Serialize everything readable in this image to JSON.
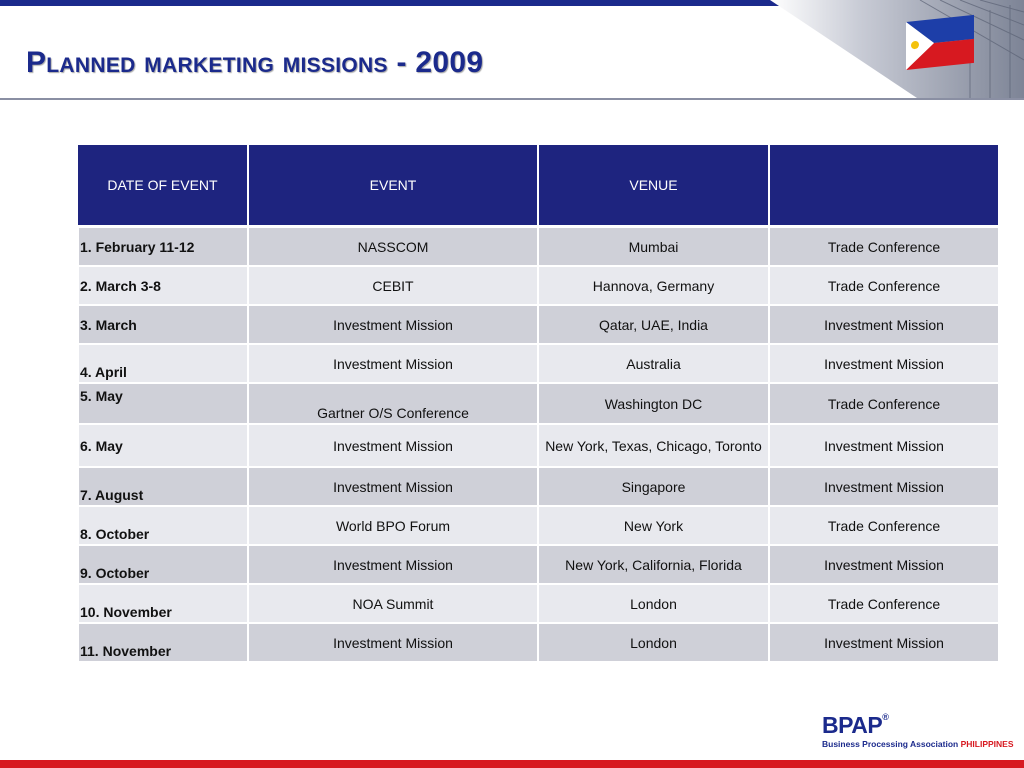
{
  "title": "Planned marketing missions - 2009",
  "colors": {
    "accent_blue": "#1b2a8c",
    "header_fill": "#1e247f",
    "accent_red": "#d71920",
    "row_dark": "#cfd0d8",
    "row_light": "#e8e9ee"
  },
  "table": {
    "headers": [
      "DATE OF EVENT",
      "EVENT",
      "VENUE",
      ""
    ],
    "rows": [
      [
        "1. February 11-12",
        "NASSCOM",
        "Mumbai",
        "Trade Conference"
      ],
      [
        "2. March 3-8",
        "CEBIT",
        "Hannova, Germany",
        "Trade Conference"
      ],
      [
        "3. March",
        "Investment Mission",
        "Qatar, UAE, India",
        "Investment Mission"
      ],
      [
        "4. April",
        "Investment Mission",
        "Australia",
        "Investment Mission"
      ],
      [
        "5. May",
        "Gartner O/S Conference",
        "Washington DC",
        "Trade Conference"
      ],
      [
        "6. May",
        "Investment Mission",
        "New York, Texas, Chicago, Toronto",
        "Investment Mission"
      ],
      [
        "7. August",
        "Investment Mission",
        "Singapore",
        "Investment Mission"
      ],
      [
        "8. October",
        "World BPO Forum",
        "New York",
        "Trade Conference"
      ],
      [
        "9. October",
        "Investment Mission",
        "New York, California, Florida",
        "Investment Mission"
      ],
      [
        "10. November",
        "NOA Summit",
        "London",
        "Trade Conference"
      ],
      [
        "11. November",
        "Investment Mission",
        "London",
        "Investment Mission"
      ]
    ]
  },
  "logo": {
    "mark": "BPAP",
    "registered": "®",
    "subtitle": "Business Processing Association",
    "subtitle_country": "PHILIPPINES"
  },
  "icons": {
    "corner": "philippine-flag-building-icon"
  }
}
